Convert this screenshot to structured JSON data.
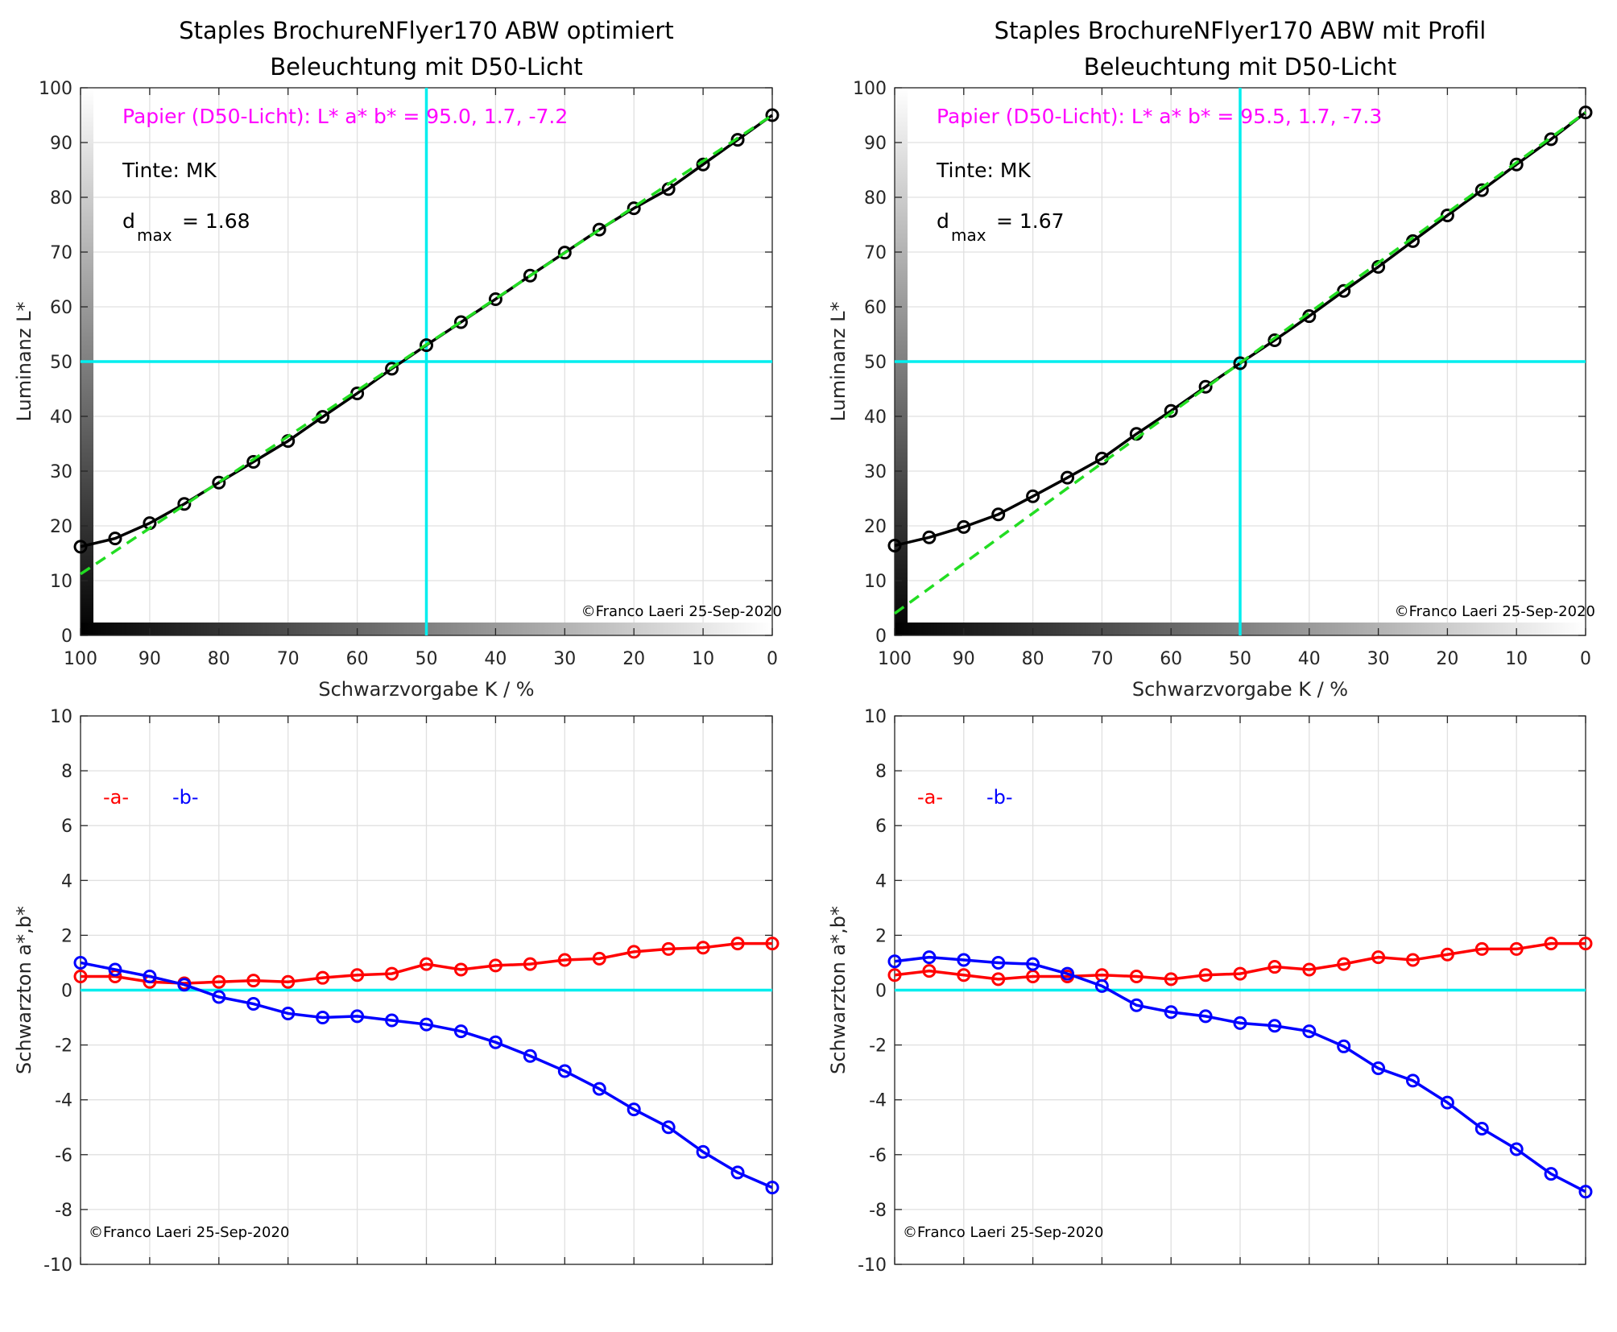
{
  "chart_data": [
    {
      "type": "line",
      "title": [
        "Staples BrochureNFlyer170 ABW optimiert",
        "Beleuchtung mit D50-Licht"
      ],
      "xlabel": "Schwarzvorgabe  K / %",
      "ylabel": "Luminanz  L*",
      "xlim": [
        100,
        0
      ],
      "ylim": [
        0,
        100
      ],
      "xticks": [
        100,
        90,
        80,
        70,
        60,
        50,
        40,
        30,
        20,
        10,
        0
      ],
      "yticks": [
        0,
        10,
        20,
        30,
        40,
        50,
        60,
        70,
        80,
        90,
        100
      ],
      "grid": true,
      "x": [
        100,
        95,
        90,
        85,
        80,
        75,
        70,
        65,
        60,
        55,
        50,
        45,
        40,
        35,
        30,
        25,
        20,
        15,
        10,
        5,
        0
      ],
      "series": [
        {
          "name": "L*",
          "color": "#000000",
          "values": [
            16.2,
            17.7,
            20.5,
            24.0,
            27.9,
            31.7,
            35.5,
            39.9,
            44.2,
            48.7,
            53.0,
            57.2,
            61.4,
            65.7,
            69.9,
            74.1,
            78.0,
            81.5,
            86.0,
            90.5,
            95.0
          ]
        },
        {
          "name": "linear",
          "color": "#22dd22",
          "dashed": true,
          "x": [
            100,
            0
          ],
          "values": [
            11.2,
            95.0
          ]
        }
      ],
      "reference_lines": {
        "x": 50,
        "y": 50,
        "color": "#00eeee"
      },
      "annotations": {
        "paper": "Papier (D50-Licht): L* a* b* = 95.0, 1.7, -7.2",
        "ink": "Tinte:  MK",
        "dmax_label": "d",
        "dmax_sub": "max",
        "dmax_value": "= 1.68",
        "copyright": "©Franco Laeri  25-Sep-2020"
      }
    },
    {
      "type": "line",
      "title": [
        "Staples BrochureNFlyer170 ABW mit Profil",
        "Beleuchtung mit D50-Licht"
      ],
      "xlabel": "Schwarzvorgabe  K / %",
      "ylabel": "Luminanz  L*",
      "xlim": [
        100,
        0
      ],
      "ylim": [
        0,
        100
      ],
      "xticks": [
        100,
        90,
        80,
        70,
        60,
        50,
        40,
        30,
        20,
        10,
        0
      ],
      "yticks": [
        0,
        10,
        20,
        30,
        40,
        50,
        60,
        70,
        80,
        90,
        100
      ],
      "grid": true,
      "x": [
        100,
        95,
        90,
        85,
        80,
        75,
        70,
        65,
        60,
        55,
        50,
        45,
        40,
        35,
        30,
        25,
        20,
        15,
        10,
        5,
        0
      ],
      "series": [
        {
          "name": "L*",
          "color": "#000000",
          "values": [
            16.4,
            17.9,
            19.8,
            22.1,
            25.4,
            28.8,
            32.3,
            36.8,
            41.0,
            45.4,
            49.7,
            53.9,
            58.3,
            62.9,
            67.3,
            72.0,
            76.7,
            81.3,
            86.0,
            90.6,
            95.5
          ]
        },
        {
          "name": "linear",
          "color": "#22dd22",
          "dashed": true,
          "x": [
            100,
            0
          ],
          "values": [
            4.0,
            95.5
          ]
        }
      ],
      "reference_lines": {
        "x": 50,
        "y": 50,
        "color": "#00eeee"
      },
      "annotations": {
        "paper": "Papier (D50-Licht): L* a* b* = 95.5, 1.7, -7.3",
        "ink": "Tinte:  MK",
        "dmax_label": "d",
        "dmax_sub": "max",
        "dmax_value": "= 1.67",
        "copyright": "©Franco Laeri  25-Sep-2020"
      }
    },
    {
      "type": "line",
      "ylabel": "Schwarzton a*,b*",
      "xlim": [
        100,
        0
      ],
      "ylim": [
        -10,
        10
      ],
      "yticks": [
        -10,
        -8,
        -6,
        -4,
        -2,
        0,
        2,
        4,
        6,
        8,
        10
      ],
      "grid": true,
      "x": [
        100,
        95,
        90,
        85,
        80,
        75,
        70,
        65,
        60,
        55,
        50,
        45,
        40,
        35,
        30,
        25,
        20,
        15,
        10,
        5,
        0
      ],
      "series": [
        {
          "name": "-a-",
          "color": "#ff0000",
          "values": [
            0.5,
            0.5,
            0.3,
            0.25,
            0.3,
            0.35,
            0.3,
            0.45,
            0.55,
            0.6,
            0.95,
            0.75,
            0.9,
            0.95,
            1.1,
            1.15,
            1.4,
            1.5,
            1.55,
            1.7,
            1.7
          ]
        },
        {
          "name": "-b-",
          "color": "#0000ff",
          "values": [
            1.0,
            0.75,
            0.5,
            0.2,
            -0.25,
            -0.5,
            -0.85,
            -1.0,
            -0.95,
            -1.1,
            -1.25,
            -1.5,
            -1.9,
            -2.4,
            -2.95,
            -3.6,
            -4.35,
            -5.0,
            -5.9,
            -6.65,
            -7.2
          ]
        }
      ],
      "reference_lines": {
        "y": 0,
        "color": "#00eeee"
      },
      "annotations": {
        "copyright": "©Franco Laeri  25-Sep-2020"
      }
    },
    {
      "type": "line",
      "ylabel": "Schwarzton a*,b*",
      "xlim": [
        100,
        0
      ],
      "ylim": [
        -10,
        10
      ],
      "yticks": [
        -10,
        -8,
        -6,
        -4,
        -2,
        0,
        2,
        4,
        6,
        8,
        10
      ],
      "grid": true,
      "x": [
        100,
        95,
        90,
        85,
        80,
        75,
        70,
        65,
        60,
        55,
        50,
        45,
        40,
        35,
        30,
        25,
        20,
        15,
        10,
        5,
        0
      ],
      "series": [
        {
          "name": "-a-",
          "color": "#ff0000",
          "values": [
            0.55,
            0.7,
            0.55,
            0.4,
            0.5,
            0.5,
            0.55,
            0.5,
            0.4,
            0.55,
            0.6,
            0.85,
            0.75,
            0.95,
            1.2,
            1.1,
            1.3,
            1.5,
            1.5,
            1.7,
            1.7
          ]
        },
        {
          "name": "-b-",
          "color": "#0000ff",
          "values": [
            1.05,
            1.2,
            1.1,
            1.0,
            0.95,
            0.6,
            0.15,
            -0.55,
            -0.8,
            -0.95,
            -1.2,
            -1.3,
            -1.5,
            -2.05,
            -2.85,
            -3.3,
            -4.1,
            -5.05,
            -5.8,
            -6.7,
            -7.35
          ]
        }
      ],
      "reference_lines": {
        "y": 0,
        "color": "#00eeee"
      },
      "annotations": {
        "copyright": "©Franco Laeri  25-Sep-2020"
      }
    }
  ]
}
